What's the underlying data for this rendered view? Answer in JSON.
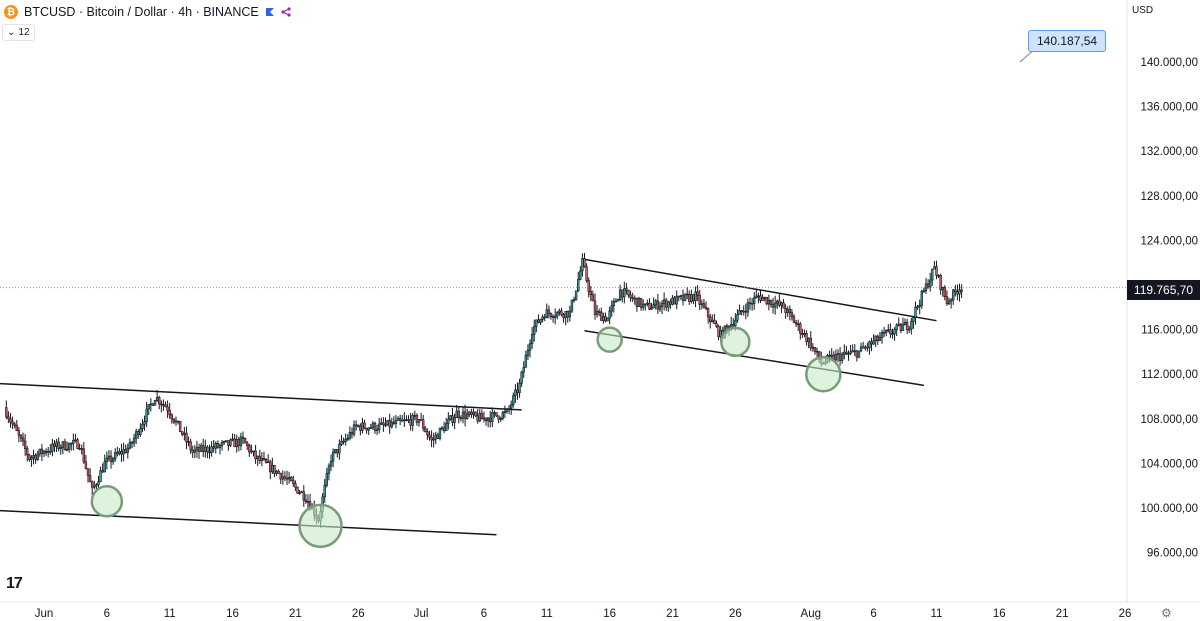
{
  "header": {
    "coin_symbol": "₿",
    "title": "BTCUSD · Bitcoin / Dollar · 4h · BINANCE",
    "collapse_label": "12",
    "currency": "USD"
  },
  "logo_text": "17",
  "current_price_label": "119.765,70",
  "callout_label": "140.187,54",
  "colors": {
    "up": "#26a69a",
    "down": "#ef5350",
    "candle_body": "#131722",
    "circle_fill": "#c8ebc8",
    "circle_stroke": "#7a9a7a",
    "trendline": "#131722",
    "dotted_line": "#9598a1"
  },
  "chart_data": {
    "type": "candlestick",
    "x_axis": {
      "tick_labels": [
        "Jun",
        "6",
        "11",
        "16",
        "21",
        "26",
        "Jul",
        "6",
        "11",
        "16",
        "21",
        "26",
        "Aug",
        "6",
        "11",
        "16",
        "21",
        "26"
      ]
    },
    "y_axis": {
      "tick_labels": [
        "140.000,00",
        "136.000,00",
        "132.000,00",
        "128.000,00",
        "124.000,00",
        "116.000,00",
        "112.000,00",
        "108.000,00",
        "104.000,00",
        "100.000,00",
        "96.000,00"
      ],
      "tick_values": [
        140000,
        136000,
        132000,
        128000,
        124000,
        116000,
        112000,
        108000,
        104000,
        100000,
        96000
      ],
      "range": [
        93000,
        145500
      ]
    },
    "current_price": 119765.7,
    "price_path": [
      [
        "2025-05-29",
        109000
      ],
      [
        "2025-05-31",
        104500
      ],
      [
        "2025-06-02",
        105500
      ],
      [
        "2025-06-04",
        105800
      ],
      [
        "2025-06-05",
        101500
      ],
      [
        "2025-06-06",
        104000
      ],
      [
        "2025-06-08",
        105500
      ],
      [
        "2025-06-10",
        110000
      ],
      [
        "2025-06-11",
        109000
      ],
      [
        "2025-06-13",
        105000
      ],
      [
        "2025-06-15",
        105500
      ],
      [
        "2025-06-17",
        106000
      ],
      [
        "2025-06-18",
        104500
      ],
      [
        "2025-06-20",
        103000
      ],
      [
        "2025-06-22",
        101000
      ],
      [
        "2025-06-23",
        99000
      ],
      [
        "2025-06-24",
        104500
      ],
      [
        "2025-06-26",
        107300
      ],
      [
        "2025-06-28",
        107300
      ],
      [
        "2025-07-01",
        108000
      ],
      [
        "2025-07-02",
        106000
      ],
      [
        "2025-07-04",
        108500
      ],
      [
        "2025-07-06",
        108000
      ],
      [
        "2025-07-08",
        108500
      ],
      [
        "2025-07-09",
        111000
      ],
      [
        "2025-07-10",
        116000
      ],
      [
        "2025-07-11",
        117500
      ],
      [
        "2025-07-13",
        117500
      ],
      [
        "2025-07-14",
        122000
      ],
      [
        "2025-07-15",
        117500
      ],
      [
        "2025-07-16",
        117000
      ],
      [
        "2025-07-17",
        119500
      ],
      [
        "2025-07-19",
        118000
      ],
      [
        "2025-07-21",
        118500
      ],
      [
        "2025-07-23",
        119000
      ],
      [
        "2025-07-25",
        115500
      ],
      [
        "2025-07-27",
        118000
      ],
      [
        "2025-07-28",
        119000
      ],
      [
        "2025-07-30",
        118000
      ],
      [
        "2025-08-01",
        115000
      ],
      [
        "2025-08-02",
        113000
      ],
      [
        "2025-08-03",
        113500
      ],
      [
        "2025-08-05",
        114000
      ],
      [
        "2025-08-07",
        115500
      ],
      [
        "2025-08-09",
        116500
      ],
      [
        "2025-08-10",
        119000
      ],
      [
        "2025-08-11",
        121500
      ],
      [
        "2025-08-12",
        118500
      ],
      [
        "2025-08-13",
        119765.7
      ]
    ],
    "trendlines": [
      {
        "from": [
          "2025-05-26",
          111300
        ],
        "to": [
          "2025-07-09",
          108800
        ]
      },
      {
        "from": [
          "2025-05-26",
          99900
        ],
        "to": [
          "2025-07-07",
          97600
        ]
      },
      {
        "from": [
          "2025-07-14",
          122300
        ],
        "to": [
          "2025-08-11",
          116800
        ]
      },
      {
        "from": [
          "2025-07-14",
          115900
        ],
        "to": [
          "2025-08-10",
          111000
        ]
      }
    ],
    "circled_lows": [
      {
        "date": "2025-06-06",
        "price": 100600
      },
      {
        "date": "2025-06-23",
        "price": 98400
      },
      {
        "date": "2025-07-16",
        "price": 115100
      },
      {
        "date": "2025-07-26",
        "price": 114900
      },
      {
        "date": "2025-08-02",
        "price": 112000
      }
    ],
    "callout_line": {
      "from": [
        "2025-08-20",
        140200
      ],
      "to": [
        "2025-08-18",
        138200
      ]
    },
    "title": "BTCUSD · Bitcoin / Dollar · 4h · BINANCE",
    "grid": false
  }
}
